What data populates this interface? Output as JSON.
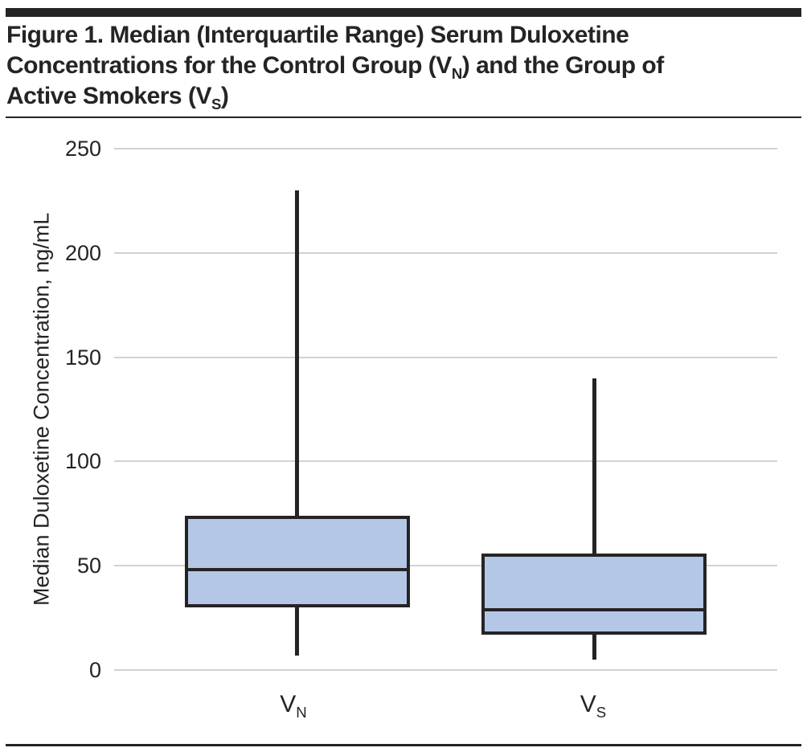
{
  "figure": {
    "title": {
      "line1": "Figure 1. Median (Interquartile Range) Serum Duloxetine",
      "line2_pre": "Concentrations for the Control Group (V",
      "line2_sub": "N",
      "line2_post": ") and the Group of",
      "line3_pre": "Active Smokers (V",
      "line3_sub": "S",
      "line3_post": ")"
    }
  },
  "chart_data": {
    "type": "boxplot",
    "title": "Figure 1. Median (Interquartile Range) Serum Duloxetine Concentrations for the Control Group (VN) and the Group of Active Smokers (VS)",
    "xlabel": "",
    "ylabel": "Median Duloxetine Concentration, ng/mL",
    "ylim": [
      0,
      250
    ],
    "yticks": [
      250,
      200,
      150,
      100,
      50,
      0
    ],
    "grid": "horizontal",
    "legend": "none",
    "categories": [
      {
        "base": "V",
        "sub": "N",
        "label": "VN"
      },
      {
        "base": "V",
        "sub": "S",
        "label": "VS"
      }
    ],
    "series": [
      {
        "name": "VN",
        "min": 7,
        "q1": 30,
        "median": 48,
        "q3": 74,
        "max": 230
      },
      {
        "name": "VS",
        "min": 5,
        "q1": 17,
        "median": 29,
        "q3": 56,
        "max": 140
      }
    ],
    "colors": {
      "box_fill": "#b4c7e7",
      "box_border": "#262324",
      "gridline": "#d2d2d2",
      "text": "#262324"
    }
  }
}
